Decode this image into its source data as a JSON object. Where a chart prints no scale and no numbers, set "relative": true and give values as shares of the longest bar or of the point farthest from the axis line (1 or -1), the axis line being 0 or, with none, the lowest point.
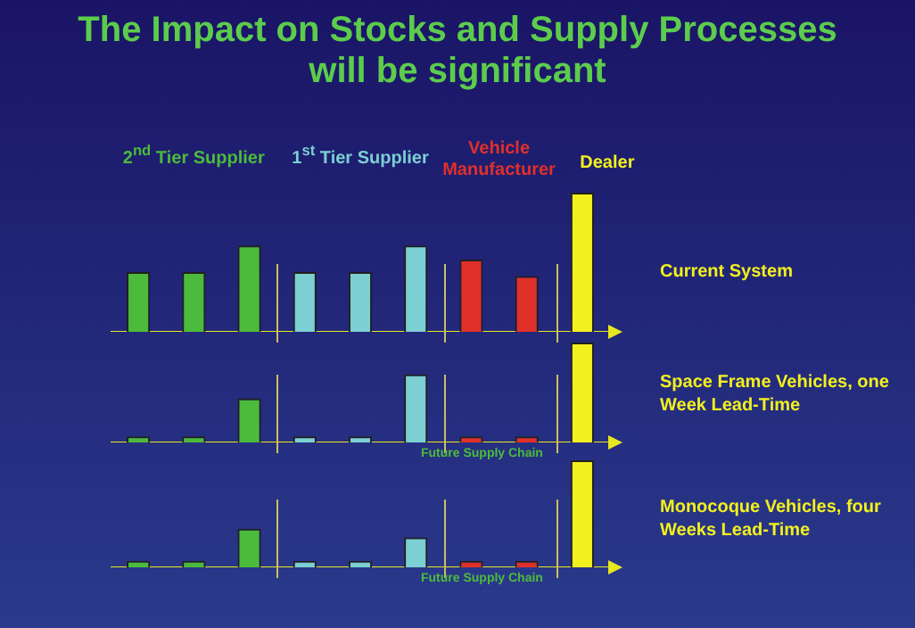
{
  "chart_data": [
    {
      "type": "bar",
      "title": "The Impact on Stocks and Supply Processes will be significant",
      "relative": true,
      "categories": [
        null,
        null,
        null,
        null,
        null,
        null,
        null,
        null,
        null
      ],
      "values": [
        0.43,
        0.43,
        0.62,
        0.43,
        0.43,
        0.62,
        0.52,
        0.4,
        1
      ],
      "colors": [
        "#4cbb3c",
        "#4cbb3c",
        "#4cbb3c",
        "#7ccfd2",
        "#7ccfd2",
        "#7ccfd2",
        "#e0302a",
        "#e0302a",
        "#f2f01e"
      ],
      "annotations": [
        "Current System",
        "2$^{nd}$ Tier Supplier",
        "1$^{st}$ Tier Supplier",
        "Vehicle Manufacturer",
        "Dealer"
      ]
    },
    {
      "type": "bar",
      "relative": true,
      "categories": [
        null,
        null,
        null,
        null,
        null,
        null,
        null,
        null,
        null
      ],
      "values": [
        0.06,
        0.06,
        0.44,
        0.06,
        0.06,
        0.68,
        0.06,
        0.06,
        1
      ],
      "colors": [
        "#4cbb3c",
        "#4cbb3c",
        "#4cbb3c",
        "#7ccfd2",
        "#7ccfd2",
        "#7ccfd2",
        "#e0302a",
        "#e0302a",
        "#f2f01e"
      ],
      "annotations": [
        "Space Frame Vehicles, one Week Lead-Time",
        "Future Supply Chain"
      ]
    },
    {
      "type": "bar",
      "relative": true,
      "categories": [
        null,
        null,
        null,
        null,
        null,
        null,
        null,
        null,
        null
      ],
      "values": [
        0.06,
        0.06,
        0.36,
        0.06,
        0.06,
        0.28,
        0.06,
        0.06,
        1
      ],
      "colors": [
        "#4cbb3c",
        "#4cbb3c",
        "#4cbb3c",
        "#7ccfd2",
        "#7ccfd2",
        "#7ccfd2",
        "#e0302a",
        "#e0302a",
        "#f2f01e"
      ],
      "annotations": [
        "Monocoque Vehicles, four Weeks Lead-Time",
        "Future Supply Chain"
      ]
    }
  ]
}
